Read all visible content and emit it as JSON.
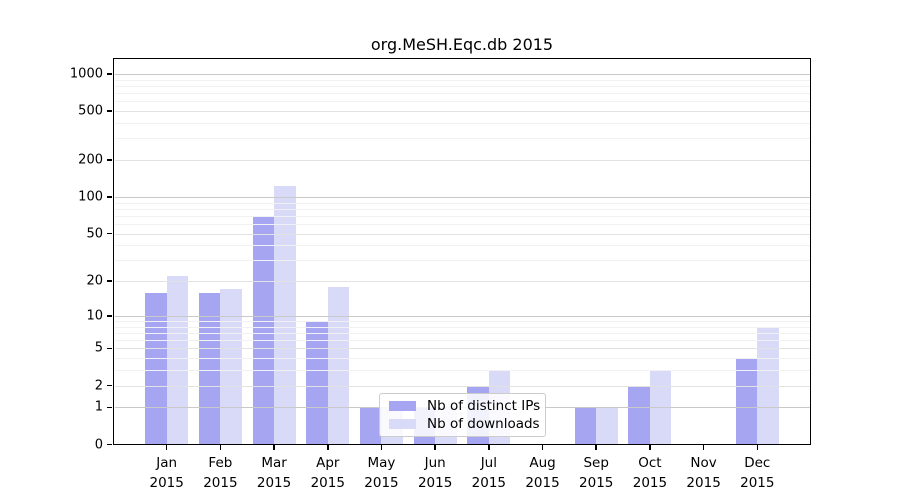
{
  "chart_data": {
    "type": "bar",
    "title": "org.MeSH.Eqc.db 2015",
    "year": "2015",
    "categories": [
      "Jan",
      "Feb",
      "Mar",
      "Apr",
      "May",
      "Jun",
      "Jul",
      "Aug",
      "Sep",
      "Oct",
      "Nov",
      "Dec"
    ],
    "series": [
      {
        "name": "Nb of distinct IPs",
        "color": "#a5a5f2",
        "values": [
          16,
          16,
          68,
          9,
          1,
          1,
          2,
          0,
          1,
          2,
          0,
          4
        ]
      },
      {
        "name": "Nb of downloads",
        "color": "#d9d9f8",
        "values": [
          22,
          17,
          123,
          18,
          1,
          1,
          3,
          0,
          1,
          3,
          0,
          8
        ]
      }
    ],
    "xlabel": "",
    "ylabel": "",
    "y_ticks": [
      0,
      1,
      2,
      5,
      10,
      20,
      50,
      100,
      200,
      500,
      1000
    ],
    "ylim": [
      0,
      1000
    ],
    "y_scale": "log10(value+1)",
    "grid": "horizontal",
    "legend_position": "lower-center"
  },
  "style": {
    "major_grid_color": "#c9c9c9",
    "tick_grid_color": "#e2e2e2",
    "minor_grid_color": "#f1f1f3",
    "axis_color": "#000000"
  }
}
